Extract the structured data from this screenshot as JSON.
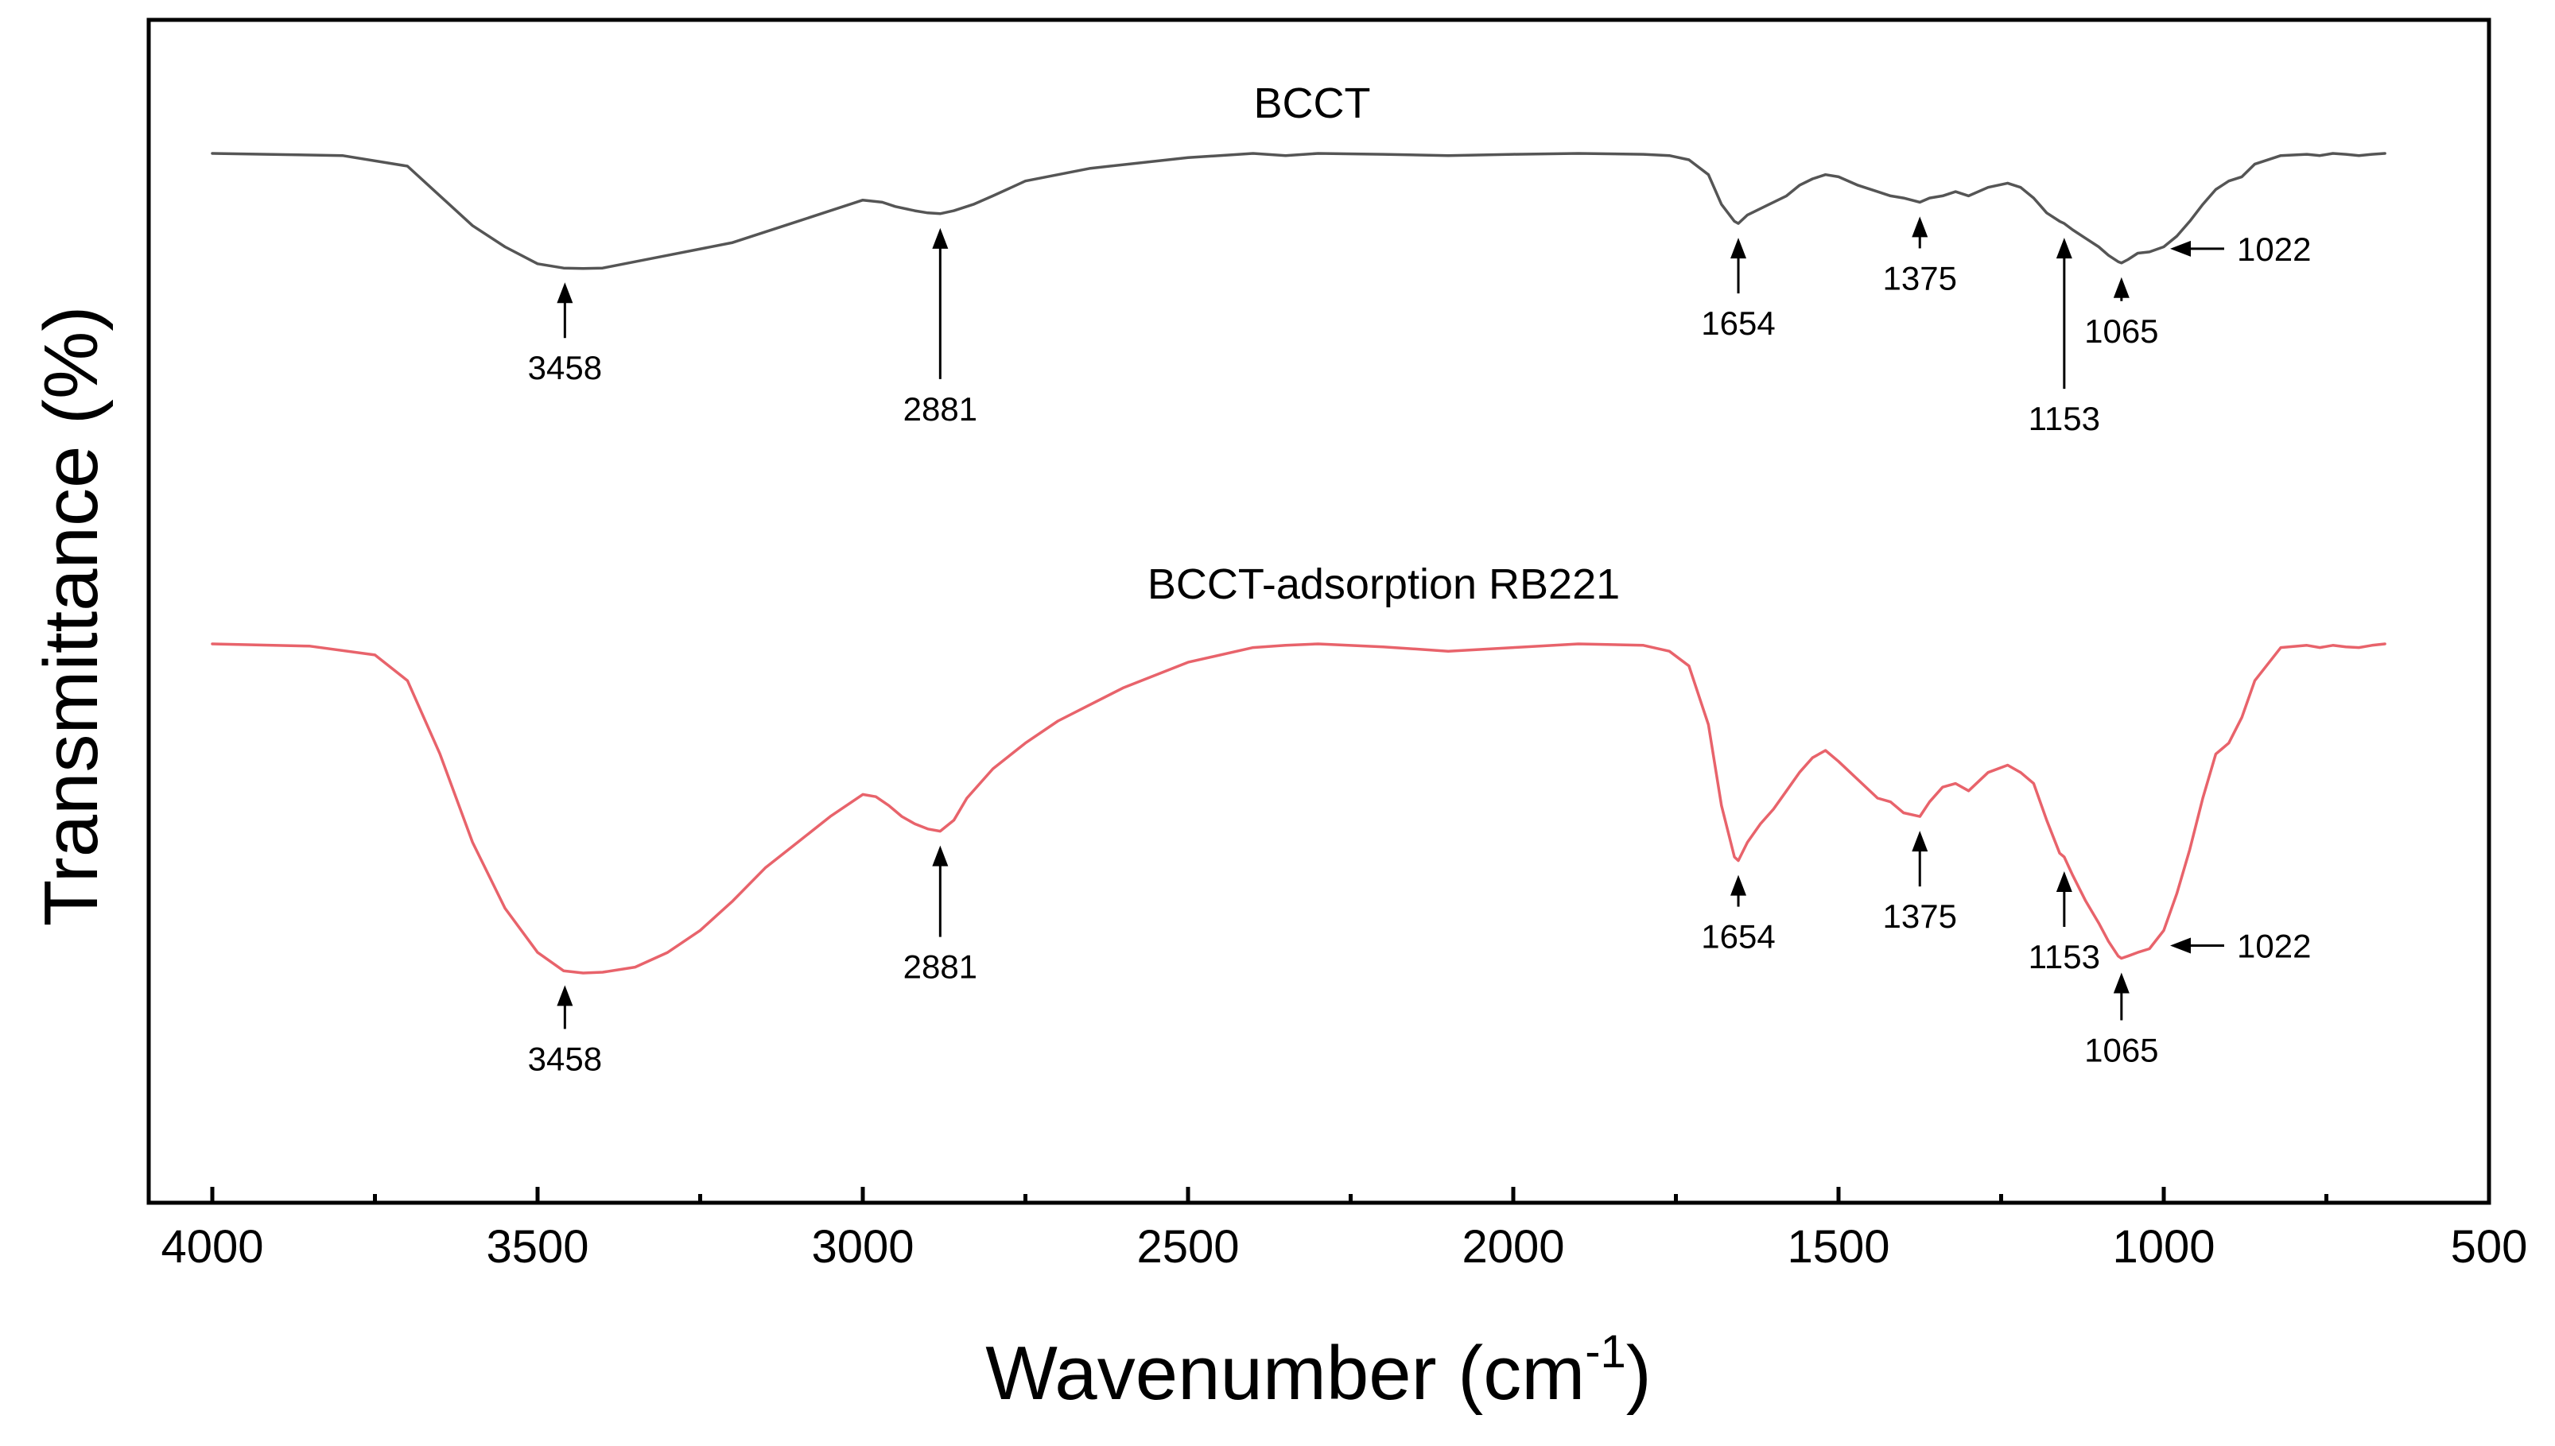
{
  "chart_data": {
    "type": "line",
    "title": "",
    "xlabel": "Wavenumber (cm",
    "xlabel_sup": "-1",
    "xlabel_close": ")",
    "ylabel": "Transmittance (%)",
    "xlim": [
      4000,
      500
    ],
    "x_reversed": true,
    "grid": false,
    "x_ticks": [
      4000,
      3500,
      3000,
      2500,
      2000,
      1500,
      1000,
      500
    ],
    "x_tick_labels": [
      "4000",
      "3500",
      "3000",
      "2500",
      "2000",
      "1500",
      "1000",
      "500"
    ],
    "y_units": "relative (offset, no tick labels)",
    "ylim": [
      0,
      100
    ],
    "series": [
      {
        "name": "BCCT",
        "color": "#555555",
        "x": [
          4000,
          3800,
          3700,
          3650,
          3600,
          3550,
          3500,
          3460,
          3430,
          3400,
          3350,
          3300,
          3200,
          3100,
          3050,
          3000,
          2970,
          2950,
          2920,
          2900,
          2881,
          2860,
          2830,
          2800,
          2750,
          2650,
          2500,
          2400,
          2350,
          2300,
          2200,
          2100,
          2000,
          1900,
          1800,
          1760,
          1730,
          1700,
          1680,
          1660,
          1654,
          1640,
          1620,
          1600,
          1580,
          1560,
          1540,
          1520,
          1500,
          1470,
          1440,
          1420,
          1400,
          1375,
          1360,
          1340,
          1320,
          1300,
          1270,
          1240,
          1220,
          1200,
          1180,
          1160,
          1153,
          1140,
          1120,
          1100,
          1085,
          1070,
          1065,
          1055,
          1040,
          1022,
          1000,
          980,
          960,
          940,
          920,
          900,
          880,
          860,
          820,
          780,
          760,
          740,
          720,
          700,
          680,
          660
        ],
        "y": [
          90.0,
          89.5,
          87.0,
          80.0,
          73.0,
          68.0,
          64.0,
          63.0,
          62.9,
          63.0,
          64.5,
          66.0,
          69.0,
          74.0,
          76.5,
          79.0,
          78.5,
          77.5,
          76.5,
          76.0,
          75.8,
          76.5,
          78.0,
          80.0,
          83.5,
          86.5,
          89.0,
          90.0,
          89.5,
          90.0,
          89.8,
          89.5,
          89.8,
          90.0,
          89.8,
          89.5,
          88.5,
          85.0,
          78.0,
          74.0,
          73.5,
          75.5,
          77.0,
          78.5,
          80.0,
          82.5,
          84.0,
          85.0,
          84.5,
          82.5,
          81.0,
          80.0,
          79.5,
          78.5,
          79.5,
          80.0,
          81.0,
          80.0,
          82.0,
          83.0,
          82.0,
          79.5,
          76.0,
          74.0,
          73.5,
          72.0,
          70.0,
          68.0,
          66.0,
          64.5,
          64.2,
          65.0,
          66.5,
          66.8,
          68.0,
          70.5,
          74.0,
          78.0,
          81.5,
          83.5,
          84.5,
          87.5,
          89.5,
          89.8,
          89.5,
          90.0,
          89.8,
          89.5,
          89.8,
          90.0
        ],
        "peaks": [
          "3458",
          "2881",
          "1654",
          "1375",
          "1153",
          "1065",
          "1022"
        ]
      },
      {
        "name": "BCCT-adsorption RB221",
        "color": "#e8636b",
        "x": [
          4000,
          3850,
          3750,
          3700,
          3650,
          3600,
          3550,
          3500,
          3460,
          3430,
          3400,
          3350,
          3300,
          3250,
          3200,
          3150,
          3100,
          3050,
          3000,
          2980,
          2960,
          2940,
          2920,
          2900,
          2881,
          2860,
          2840,
          2800,
          2750,
          2700,
          2600,
          2500,
          2400,
          2350,
          2300,
          2200,
          2100,
          2000,
          1900,
          1800,
          1760,
          1730,
          1700,
          1680,
          1660,
          1654,
          1640,
          1620,
          1600,
          1580,
          1560,
          1540,
          1520,
          1500,
          1470,
          1440,
          1420,
          1400,
          1375,
          1360,
          1340,
          1320,
          1300,
          1270,
          1240,
          1220,
          1200,
          1180,
          1160,
          1153,
          1140,
          1120,
          1100,
          1085,
          1070,
          1065,
          1055,
          1040,
          1022,
          1000,
          980,
          960,
          940,
          920,
          900,
          880,
          860,
          820,
          780,
          760,
          740,
          720,
          700,
          680,
          660
        ],
        "y": [
          90.0,
          89.7,
          88.5,
          85.0,
          75.0,
          63.0,
          54.0,
          48.0,
          45.5,
          45.2,
          45.3,
          46.0,
          48.0,
          51.0,
          55.0,
          59.5,
          63.0,
          66.5,
          69.5,
          69.2,
          68.0,
          66.5,
          65.5,
          64.8,
          64.5,
          66.0,
          69.0,
          73.0,
          76.5,
          79.5,
          84.0,
          87.5,
          89.5,
          89.8,
          90.0,
          89.6,
          89.0,
          89.5,
          90.0,
          89.8,
          89.0,
          87.0,
          79.0,
          68.0,
          61.0,
          60.5,
          63.0,
          65.5,
          67.5,
          70.0,
          72.5,
          74.5,
          75.5,
          74.0,
          71.5,
          69.0,
          68.5,
          67.0,
          66.5,
          68.5,
          70.5,
          71.0,
          70.0,
          72.5,
          73.5,
          72.5,
          71.0,
          66.0,
          61.5,
          61.0,
          58.5,
          55.0,
          52.0,
          49.5,
          47.5,
          47.2,
          47.5,
          48.0,
          48.5,
          51.0,
          56.0,
          62.0,
          69.0,
          75.0,
          76.5,
          80.0,
          85.0,
          89.5,
          89.8,
          89.5,
          89.8,
          89.6,
          89.5,
          89.8,
          90.0
        ],
        "peaks": [
          "3458",
          "2881",
          "1654",
          "1375",
          "1153",
          "1065",
          "1022"
        ]
      }
    ],
    "annotations": [
      {
        "series": 0,
        "text": "3458",
        "x": 3458,
        "arrow": "up"
      },
      {
        "series": 0,
        "text": "2881",
        "x": 2881,
        "arrow": "up"
      },
      {
        "series": 0,
        "text": "1654",
        "x": 1654,
        "arrow": "up"
      },
      {
        "series": 0,
        "text": "1375",
        "x": 1375,
        "arrow": "up"
      },
      {
        "series": 0,
        "text": "1153",
        "x": 1153,
        "arrow": "up"
      },
      {
        "series": 0,
        "text": "1065",
        "x": 1065,
        "arrow": "up"
      },
      {
        "series": 0,
        "text": "1022",
        "x": 1022,
        "arrow": "left"
      },
      {
        "series": 1,
        "text": "3458",
        "x": 3458,
        "arrow": "up"
      },
      {
        "series": 1,
        "text": "2881",
        "x": 2881,
        "arrow": "up"
      },
      {
        "series": 1,
        "text": "1654",
        "x": 1654,
        "arrow": "up"
      },
      {
        "series": 1,
        "text": "1375",
        "x": 1375,
        "arrow": "up"
      },
      {
        "series": 1,
        "text": "1153",
        "x": 1153,
        "arrow": "up"
      },
      {
        "series": 1,
        "text": "1065",
        "x": 1065,
        "arrow": "up"
      },
      {
        "series": 1,
        "text": "1022",
        "x": 1022,
        "arrow": "left"
      }
    ]
  }
}
